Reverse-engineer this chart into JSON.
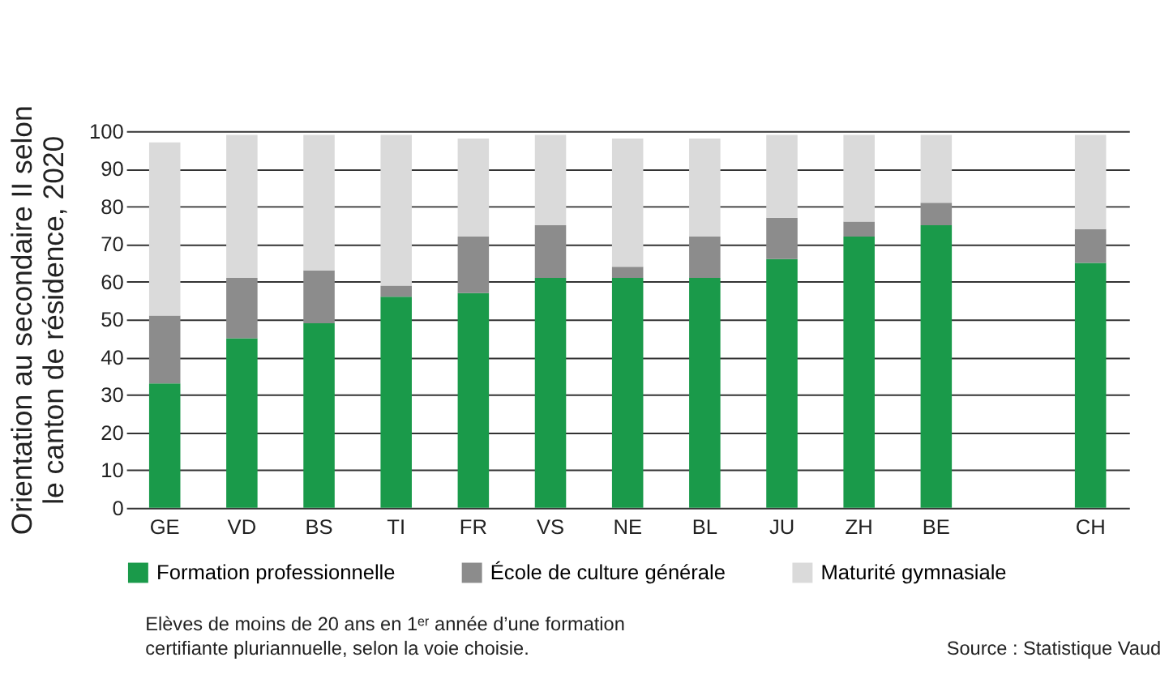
{
  "chart_data": {
    "type": "bar",
    "stacked": true,
    "ylabel": "Orientation au secondaire II selon\nle canton de résidence, 2020",
    "categories": [
      "GE",
      "VD",
      "BS",
      "TI",
      "FR",
      "VS",
      "NE",
      "BL",
      "JU",
      "ZH",
      "BE",
      null,
      "CH"
    ],
    "series": [
      {
        "name": "Formation professionnelle",
        "color": "#1a9a4a",
        "values": [
          33,
          45,
          49,
          56,
          57,
          61,
          61,
          61,
          66,
          72,
          75,
          null,
          65
        ]
      },
      {
        "name": "École de culture générale",
        "color": "#8c8c8c",
        "values": [
          18,
          16,
          14,
          3,
          15,
          14,
          3,
          11,
          11,
          4,
          6,
          null,
          9
        ]
      },
      {
        "name": "Maturité gymnasiale",
        "color": "#dadada",
        "values": [
          46,
          38,
          36,
          40,
          26,
          24,
          34,
          26,
          22,
          23,
          18,
          null,
          25
        ]
      }
    ],
    "ylim": [
      0,
      100
    ],
    "yticks": [
      0,
      10,
      20,
      30,
      40,
      50,
      60,
      70,
      80,
      90,
      100
    ],
    "grid": "y",
    "legend": "bottom",
    "annotations": [
      "Elèves de moins de 20 ans en 1ᵉʳ année d’une formation\ncertifiante pluriannuelle, selon la voie choisie.",
      "Source : Statistique Vaud"
    ]
  }
}
